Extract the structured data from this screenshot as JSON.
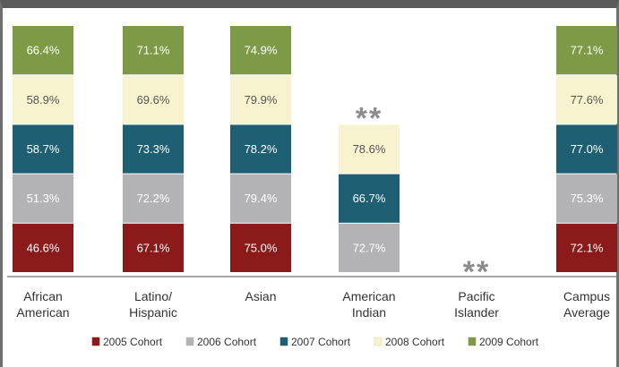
{
  "chart_data": {
    "type": "bar",
    "stacked": true,
    "categories": [
      [
        "African",
        "American"
      ],
      [
        "Latino/",
        "Hispanic"
      ],
      [
        "Asian"
      ],
      [
        "American",
        "Indian"
      ],
      [
        "Pacific",
        "Islander"
      ],
      [
        "Campus",
        "Average"
      ]
    ],
    "series": [
      {
        "name": "2005 Cohort",
        "color": "#8b1a1a",
        "text_color": "#ffffff",
        "values": [
          46.6,
          67.1,
          75.0,
          null,
          null,
          72.1
        ],
        "labels": [
          "46.6%",
          "67.1%",
          "75.0%",
          "",
          "",
          "72.1%"
        ]
      },
      {
        "name": "2006 Cohort",
        "color": "#b3b3b6",
        "text_color": "#ffffff",
        "values": [
          51.3,
          72.2,
          79.4,
          72.7,
          null,
          75.3
        ],
        "labels": [
          "51.3%",
          "72.2%",
          "79.4%",
          "72.7%",
          "",
          "75.3%"
        ]
      },
      {
        "name": "2007 Cohort",
        "color": "#1f5f74",
        "text_color": "#ffffff",
        "values": [
          58.7,
          73.3,
          78.2,
          66.7,
          null,
          77.0
        ],
        "labels": [
          "58.7%",
          "73.3%",
          "78.2%",
          "66.7%",
          "",
          "77.0%"
        ]
      },
      {
        "name": "2008 Cohort",
        "color": "#f7f3cf",
        "text_color": "#555555",
        "values": [
          58.9,
          69.6,
          79.9,
          78.6,
          null,
          77.6
        ],
        "labels": [
          "58.9%",
          "69.6%",
          "79.9%",
          "78.6%",
          "",
          "77.6%"
        ]
      },
      {
        "name": "2009 Cohort",
        "color": "#7e9a47",
        "text_color": "#ffffff",
        "values": [
          66.4,
          71.1,
          74.9,
          null,
          null,
          77.1
        ],
        "labels": [
          "66.4%",
          "71.1%",
          "74.9%",
          "",
          "",
          "77.1%"
        ]
      }
    ],
    "notes": [
      {
        "category_index": 3,
        "text": "**"
      },
      {
        "category_index": 4,
        "text": "**"
      }
    ],
    "legend_position": "bottom",
    "grid": false
  }
}
